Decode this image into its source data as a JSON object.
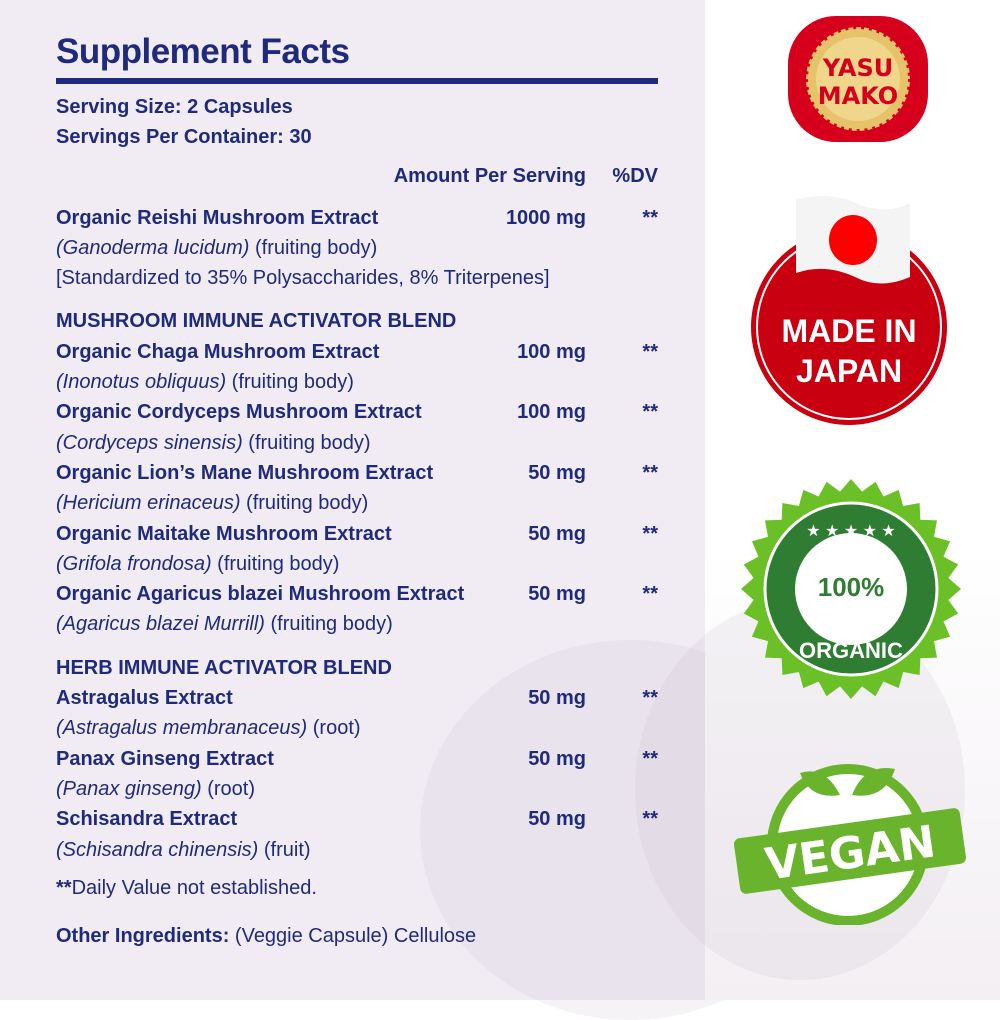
{
  "title": "Supplement Facts",
  "serving_size": "Serving Size: 2 Capsules",
  "servings_per_container": "Servings Per Container: 30",
  "columns": {
    "amount": "Amount Per Serving",
    "dv": "%DV"
  },
  "main_ingredient": {
    "name": "Organic Reishi Mushroom Extract",
    "amount": "1000 mg",
    "dv": "**",
    "latin": "(Ganoderma lucidum)",
    "part": " (fruiting body)",
    "note": "[Standardized to 35% Polysaccharides, 8% Triterpenes]"
  },
  "blends": [
    {
      "heading": "MUSHROOM IMMUNE ACTIVATOR BLEND",
      "items": [
        {
          "name": "Organic Chaga Mushroom Extract",
          "amount": "100 mg",
          "dv": "**",
          "latin": "(Inonotus obliquus)",
          "part": " (fruiting body)"
        },
        {
          "name": "Organic Cordyceps Mushroom Extract",
          "amount": "100 mg",
          "dv": "**",
          "latin": "(Cordyceps sinensis)",
          "part": " (fruiting body)"
        },
        {
          "name": "Organic Lion’s Mane Mushroom Extract",
          "amount": "50 mg",
          "dv": "**",
          "latin": "(Hericium erinaceus)",
          "part": " (fruiting body)"
        },
        {
          "name": "Organic Maitake Mushroom Extract",
          "amount": "50 mg",
          "dv": "**",
          "latin": "(Grifola frondosa)",
          "part": " (fruiting body)"
        },
        {
          "name": "Organic Agaricus blazei Mushroom Extract",
          "amount": "50 mg",
          "dv": "**",
          "latin": "(Agaricus blazei Murrill)",
          "part": " (fruiting body)"
        }
      ]
    },
    {
      "heading": "HERB IMMUNE ACTIVATOR BLEND",
      "items": [
        {
          "name": "Astragalus Extract",
          "amount": "50 mg",
          "dv": "**",
          "latin": "(Astragalus membranaceus)",
          "part": " (root)"
        },
        {
          "name": "Panax Ginseng Extract",
          "amount": "50 mg",
          "dv": "**",
          "latin": "(Panax ginseng)",
          "part": " (root)"
        },
        {
          "name": "Schisandra Extract",
          "amount": "50 mg",
          "dv": "**",
          "latin": "(Schisandra chinensis)",
          "part": " (fruit)"
        }
      ]
    }
  ],
  "footnote": {
    "stars": "**",
    "text": "Daily Value not established."
  },
  "other_ingredients": {
    "label": "Other Ingredients:",
    "value": " (Veggie Capsule) Cellulose"
  },
  "badges": {
    "brand": {
      "line1": "YASU",
      "line2": "MAKO"
    },
    "made_in": {
      "line1": "MADE IN",
      "line2": "JAPAN"
    },
    "organic": {
      "line1": "100%",
      "line2": "ORGANIC"
    },
    "vegan": {
      "text": "VEGAN"
    }
  },
  "colors": {
    "navy": "#1f2a7a",
    "red": "#d7001c",
    "green": "#5fae2e",
    "gold": "#e6c36a"
  }
}
